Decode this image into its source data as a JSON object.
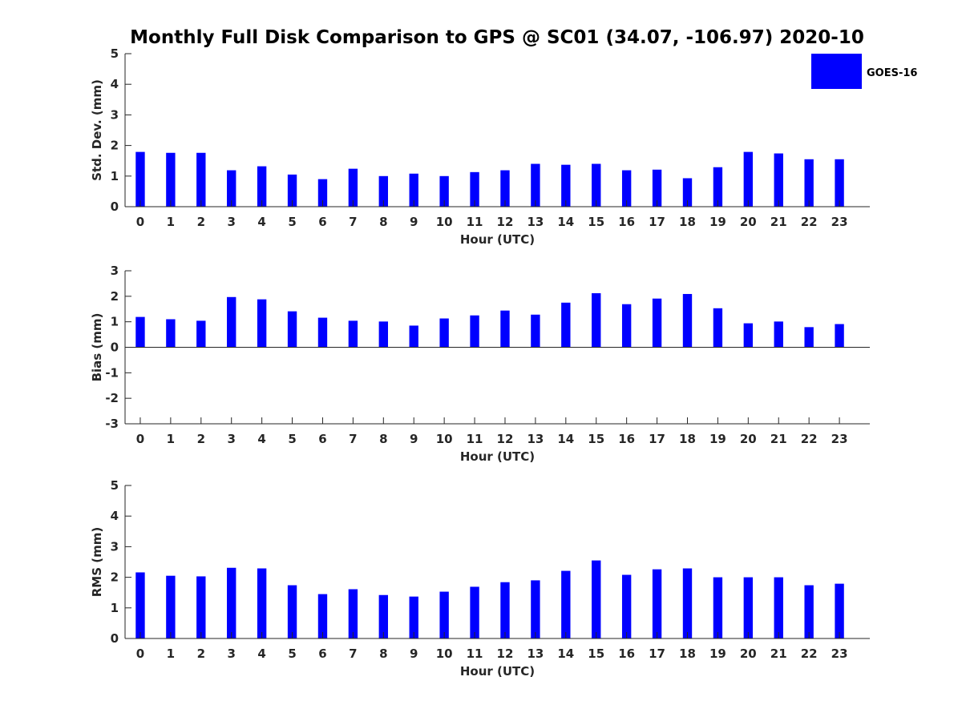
{
  "chart_data": {
    "title": "Monthly Full Disk Comparison to GPS @ SC01 (34.07, -106.97) 2020-10",
    "legend": {
      "entries": [
        "GOES-16"
      ],
      "placement": "top-right"
    },
    "bar_color": "#0000ff",
    "charts": [
      {
        "type": "bar",
        "xlabel": "Hour (UTC)",
        "ylabel": "Std. Dev. (mm)",
        "ylim": [
          0,
          5
        ],
        "yticks": [
          0,
          1,
          2,
          3,
          4,
          5
        ],
        "categories": [
          0,
          1,
          2,
          3,
          4,
          5,
          6,
          7,
          8,
          9,
          10,
          11,
          12,
          13,
          14,
          15,
          16,
          17,
          18,
          19,
          20,
          21,
          22,
          23
        ],
        "series": [
          {
            "name": "GOES-16",
            "values": [
              1.79,
              1.76,
              1.76,
              1.19,
              1.32,
              1.05,
              0.9,
              1.24,
              1.0,
              1.08,
              1.0,
              1.13,
              1.19,
              1.4,
              1.37,
              1.4,
              1.19,
              1.21,
              0.93,
              1.29,
              1.79,
              1.74,
              1.55,
              1.55
            ]
          }
        ]
      },
      {
        "type": "bar",
        "xlabel": "Hour (UTC)",
        "ylabel": "Bias (mm)",
        "ylim": [
          -3,
          3
        ],
        "yticks": [
          -3,
          -2,
          -1,
          0,
          1,
          2,
          3
        ],
        "categories": [
          0,
          1,
          2,
          3,
          4,
          5,
          6,
          7,
          8,
          9,
          10,
          11,
          12,
          13,
          14,
          15,
          16,
          17,
          18,
          19,
          20,
          21,
          22,
          23
        ],
        "series": [
          {
            "name": "GOES-16",
            "values": [
              1.19,
              1.1,
              1.04,
              1.97,
              1.88,
              1.41,
              1.16,
              1.04,
              1.01,
              0.85,
              1.13,
              1.25,
              1.44,
              1.28,
              1.75,
              2.12,
              1.69,
              1.91,
              2.09,
              1.53,
              0.94,
              1.01,
              0.79,
              0.91
            ]
          }
        ]
      },
      {
        "type": "bar",
        "xlabel": "Hour (UTC)",
        "ylabel": "RMS (mm)",
        "ylim": [
          0,
          5
        ],
        "yticks": [
          0,
          1,
          2,
          3,
          4,
          5
        ],
        "categories": [
          0,
          1,
          2,
          3,
          4,
          5,
          6,
          7,
          8,
          9,
          10,
          11,
          12,
          13,
          14,
          15,
          16,
          17,
          18,
          19,
          20,
          21,
          22,
          23
        ],
        "series": [
          {
            "name": "GOES-16",
            "values": [
              2.16,
              2.05,
              2.03,
              2.31,
              2.29,
              1.74,
              1.45,
              1.61,
              1.42,
              1.37,
              1.53,
              1.69,
              1.84,
              1.9,
              2.21,
              2.55,
              2.08,
              2.26,
              2.29,
              2.0,
              2.0,
              2.0,
              1.74,
              1.79
            ]
          }
        ]
      }
    ]
  }
}
